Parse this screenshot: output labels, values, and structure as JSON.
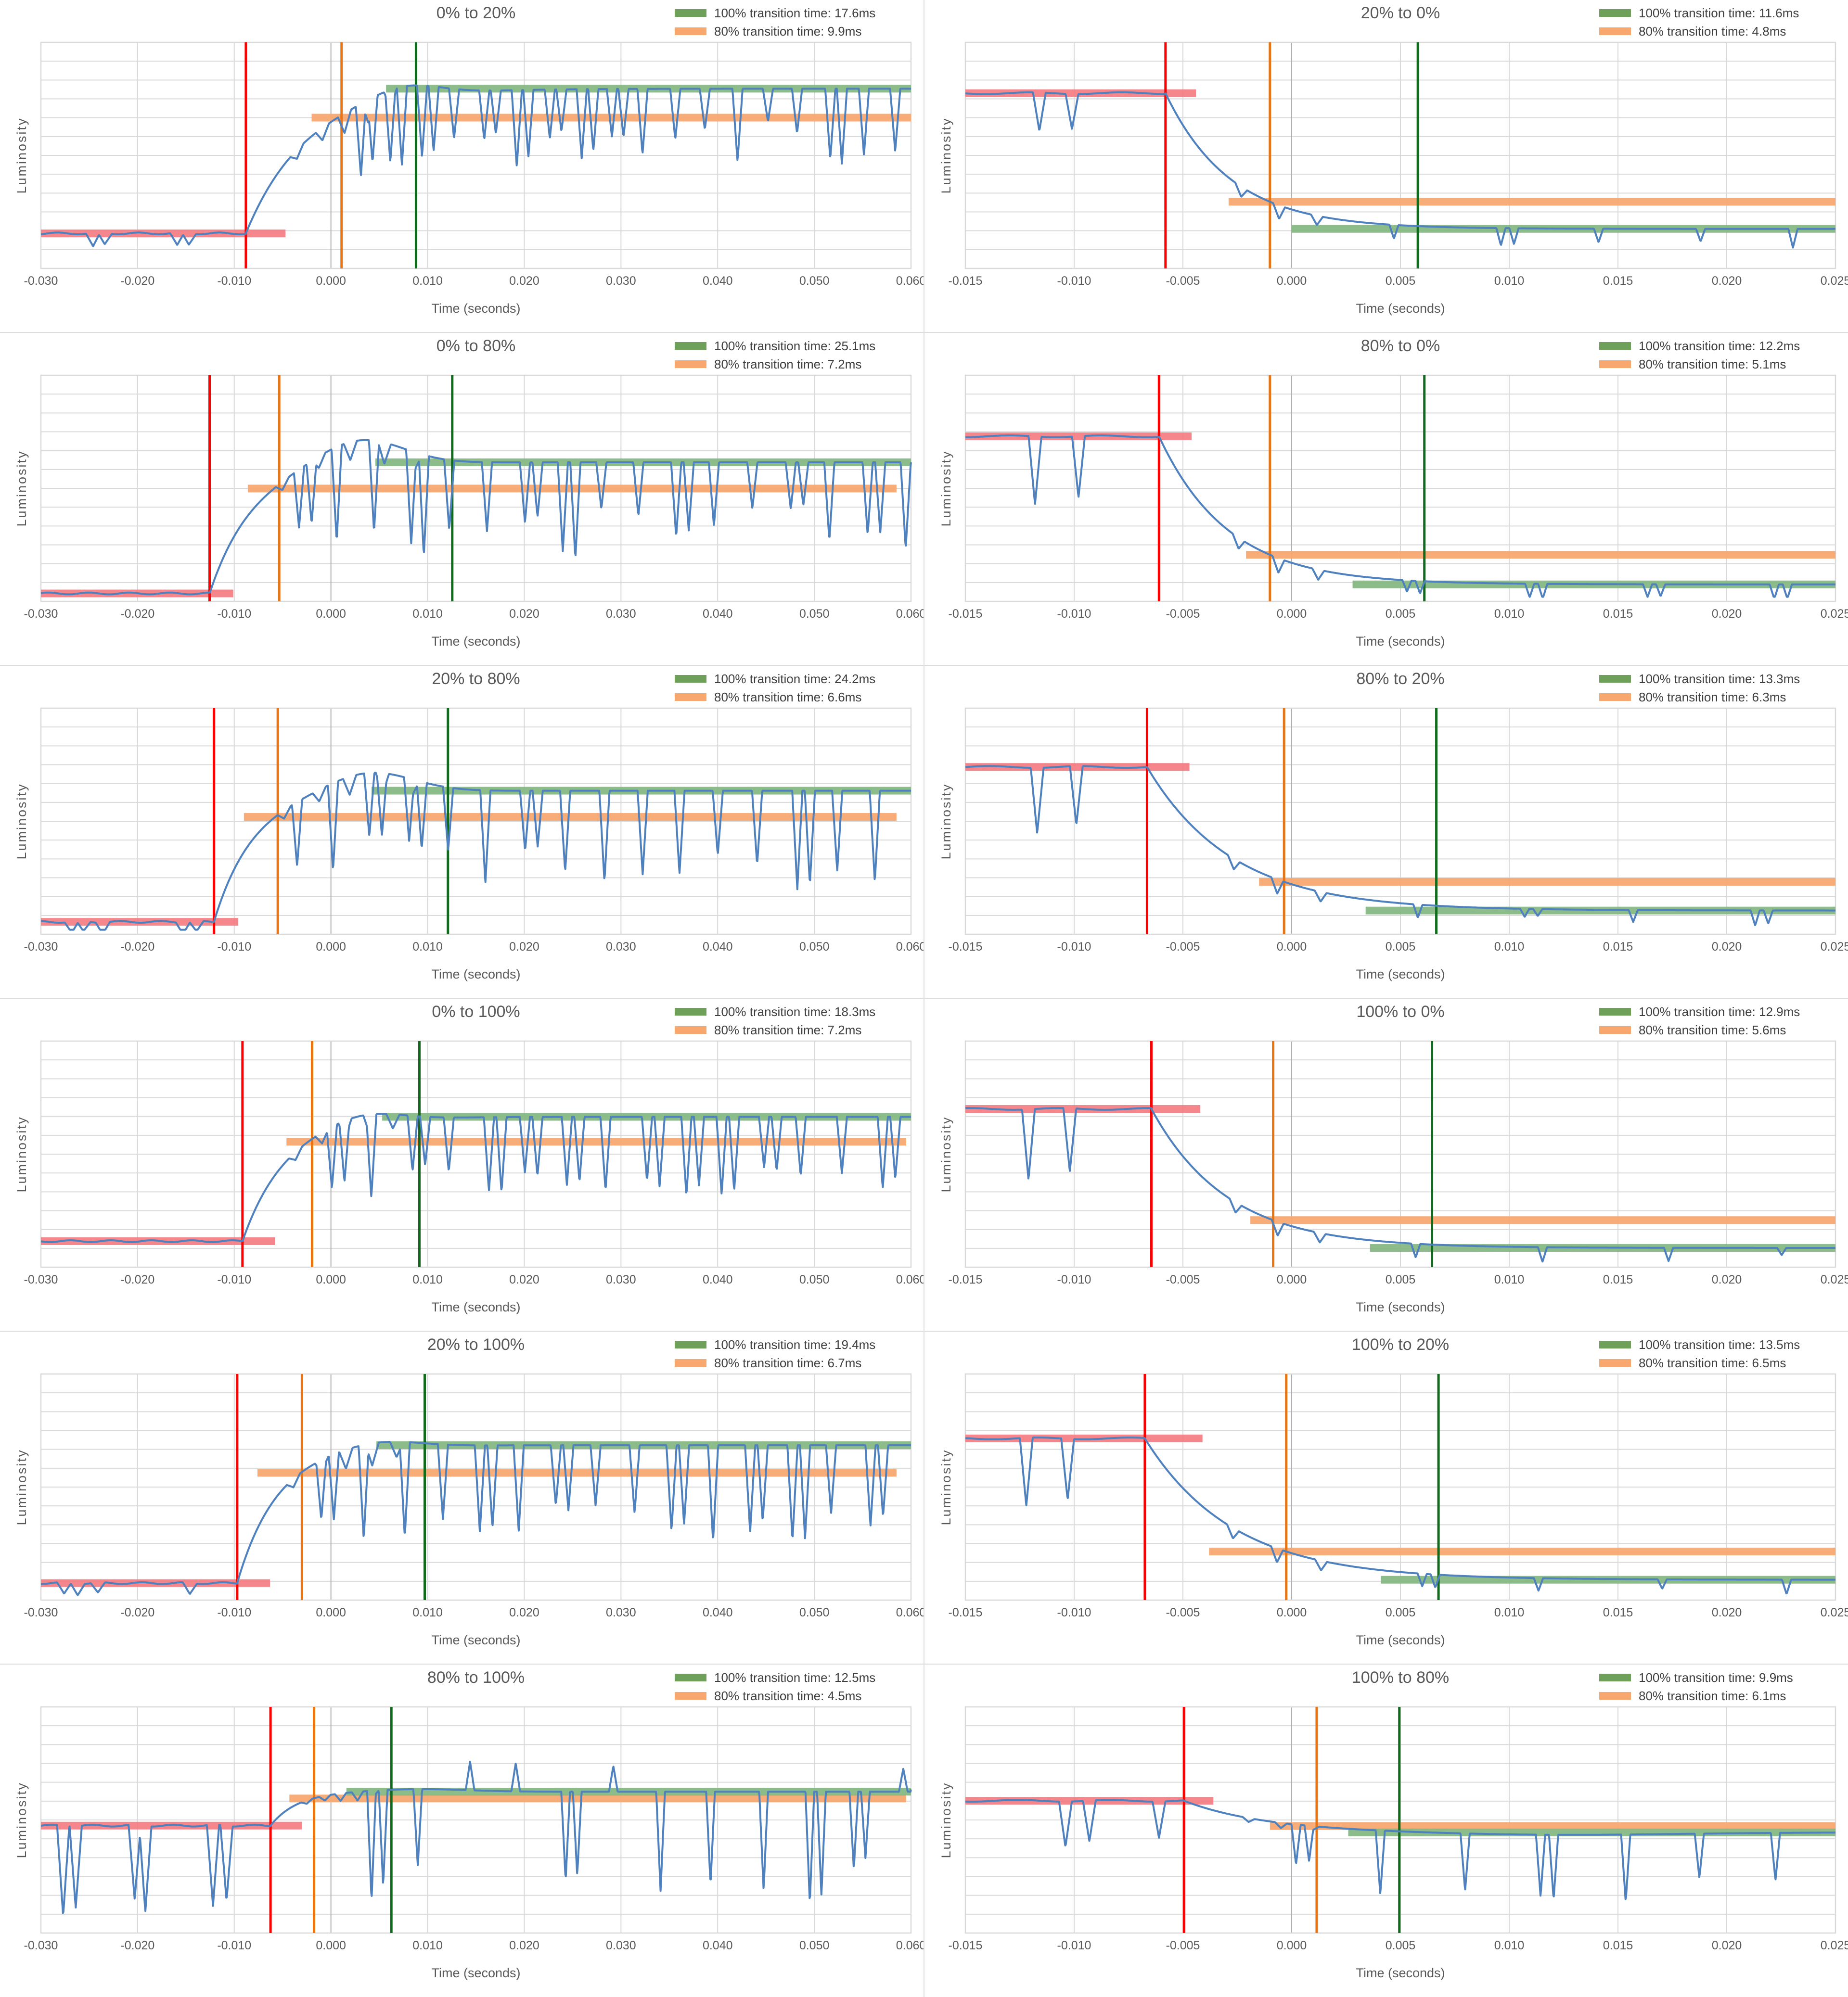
{
  "page": {
    "background": "#ffffff"
  },
  "axis": {
    "x_label": "Time (seconds)",
    "y_label": "Luminosity"
  },
  "colors": {
    "blue_line": "#4E81BD",
    "red_line": "#FE0000",
    "orange_line": "#E97414",
    "green_line": "#116B1C",
    "red_bar": "#F4797E",
    "green_bar": "#85B883",
    "orange_bar": "#F8A870",
    "gridline": "#D9D9D9",
    "zero_line": "#B0B0B0",
    "plot_border": "#D9D9D9",
    "title_text": "#595959",
    "tick_text": "#595959",
    "legend_text": "#3F3F3F",
    "legend_green_swatch": "#6FA05A",
    "legend_orange_swatch": "#F8A76F"
  },
  "chart_data": [
    {
      "type": "line",
      "title": "0% to 20%",
      "t100_ms": 17.6,
      "t80_ms": 9.9,
      "legend_100": "100% transition time: 17.6ms",
      "legend_80": "80% transition time: 9.9ms",
      "x_min": -0.03,
      "x_max": 0.06,
      "x_ticks": [
        "-0.030",
        "-0.020",
        "-0.010",
        "0.000",
        "0.010",
        "0.020",
        "0.030",
        "0.040",
        "0.050",
        "0.060"
      ],
      "red_line_t": -0.0088,
      "orange_line_t": 0.0011,
      "green_line_t": 0.0088,
      "source_level": 0.155,
      "target_level": 0.795,
      "level80": 0.667,
      "overshoot": 0.055,
      "peak_t": 0.0075,
      "peak_w": 0.005,
      "red_bar": [
        -0.03,
        -0.0047
      ],
      "green_bar": [
        0.0057,
        0.06
      ],
      "orange_bar": [
        -0.002,
        0.06
      ],
      "pre_spikes": [
        [
          -0.0246,
          0.06
        ],
        [
          -0.0234,
          0.05
        ],
        [
          -0.0159,
          0.055
        ],
        [
          -0.0147,
          0.05
        ]
      ],
      "spikes": {
        "start": 0.0031,
        "gap": [
          0.003,
          0.0035
        ],
        "depth": [
          0.14,
          0.34
        ],
        "double_p": 0.55,
        "double_off": 0.0012,
        "width": 0.0007
      },
      "seed": 3
    },
    {
      "type": "line",
      "title": "20% to 0%",
      "t100_ms": 11.6,
      "t80_ms": 4.8,
      "legend_100": "100% transition time: 11.6ms",
      "legend_80": "80% transition time: 4.8ms",
      "x_min": -0.015,
      "x_max": 0.025,
      "x_ticks": [
        "-0.015",
        "-0.010",
        "-0.005",
        "0.000",
        "0.005",
        "0.010",
        "0.015",
        "0.020",
        "0.025"
      ],
      "red_line_t": -0.0058,
      "orange_line_t": -0.001,
      "green_line_t": 0.0058,
      "source_level": 0.775,
      "target_level": 0.175,
      "level80": 0.295,
      "overshoot": 0,
      "peak_t": 0,
      "peak_w": 1,
      "red_bar": [
        -0.015,
        -0.0044
      ],
      "green_bar": [
        0.0,
        0.025
      ],
      "orange_bar": [
        -0.0029,
        0.025
      ],
      "pre_spikes": [
        [
          -0.0116,
          0.17
        ],
        [
          -0.0101,
          0.155
        ]
      ],
      "spikes": {
        "start": 0.0047,
        "gap": [
          0.0042,
          0.005
        ],
        "depth": [
          0.05,
          0.095
        ],
        "double_p": 0.5,
        "double_off": 0.0006,
        "width": 0.00028
      },
      "seed": 7
    },
    {
      "type": "line",
      "title": "0% to 80%",
      "t100_ms": 25.1,
      "t80_ms": 7.2,
      "legend_100": "100% transition time: 25.1ms",
      "legend_80": "80% transition time: 7.2ms",
      "x_min": -0.03,
      "x_max": 0.06,
      "x_ticks": [
        "-0.030",
        "-0.020",
        "-0.010",
        "0.000",
        "0.010",
        "0.020",
        "0.030",
        "0.040",
        "0.050",
        "0.060"
      ],
      "red_line_t": -0.01255,
      "orange_line_t": -0.00535,
      "green_line_t": 0.01255,
      "source_level": 0.035,
      "target_level": 0.615,
      "level80": 0.499,
      "overshoot": 0.115,
      "peak_t": 0.003,
      "peak_w": 0.0062,
      "red_bar": [
        -0.03,
        -0.0101
      ],
      "green_bar": [
        0.0046,
        0.06
      ],
      "orange_bar": [
        -0.0086,
        0.0585
      ],
      "pre_spikes": [],
      "spikes": {
        "start": -0.0033,
        "gap": [
          0.0038,
          0.004
        ],
        "depth": [
          0.2,
          0.42
        ],
        "double_p": 0.55,
        "double_off": 0.0013,
        "width": 0.0007
      },
      "seed": 5
    },
    {
      "type": "line",
      "title": "80% to 0%",
      "t100_ms": 12.2,
      "t80_ms": 5.1,
      "legend_100": "100% transition time: 12.2ms",
      "legend_80": "80% transition time: 5.1ms",
      "x_min": -0.015,
      "x_max": 0.025,
      "x_ticks": [
        "-0.015",
        "-0.010",
        "-0.005",
        "0.000",
        "0.005",
        "0.010",
        "0.015",
        "0.020",
        "0.025"
      ],
      "red_line_t": -0.0061,
      "orange_line_t": -0.001,
      "green_line_t": 0.0061,
      "source_level": 0.73,
      "target_level": 0.075,
      "level80": 0.206,
      "overshoot": 0,
      "peak_t": 0,
      "peak_w": 1,
      "red_bar": [
        -0.015,
        -0.0046
      ],
      "green_bar": [
        0.0028,
        0.025
      ],
      "orange_bar": [
        -0.0021,
        0.025
      ],
      "pre_spikes": [
        [
          -0.0118,
          0.3
        ],
        [
          -0.0098,
          0.27
        ]
      ],
      "spikes": {
        "start": 0.0053,
        "gap": [
          0.005,
          0.006
        ],
        "depth": [
          0.04,
          0.08
        ],
        "double_p": 0.45,
        "double_off": 0.0006,
        "width": 0.00028
      },
      "seed": 9
    },
    {
      "type": "line",
      "title": "20% to 80%",
      "t100_ms": 24.2,
      "t80_ms": 6.6,
      "legend_100": "100% transition time: 24.2ms",
      "legend_80": "80% transition time: 6.6ms",
      "x_min": -0.03,
      "x_max": 0.06,
      "x_ticks": [
        "-0.030",
        "-0.020",
        "-0.010",
        "0.000",
        "0.010",
        "0.020",
        "0.030",
        "0.040",
        "0.050",
        "0.060"
      ],
      "red_line_t": -0.0121,
      "orange_line_t": -0.0055,
      "green_line_t": 0.0121,
      "source_level": 0.055,
      "target_level": 0.635,
      "level80": 0.519,
      "overshoot": 0.09,
      "peak_t": 0.004,
      "peak_w": 0.0062,
      "red_bar": [
        -0.03,
        -0.0096
      ],
      "green_bar": [
        0.0042,
        0.06
      ],
      "orange_bar": [
        -0.009,
        0.0585
      ],
      "pre_spikes": [
        [
          -0.0268,
          0.05
        ],
        [
          -0.0256,
          0.045
        ],
        [
          -0.0236,
          0.05
        ],
        [
          -0.0153,
          0.05
        ],
        [
          -0.0139,
          0.045
        ]
      ],
      "spikes": {
        "start": -0.0035,
        "gap": [
          0.0037,
          0.0042
        ],
        "depth": [
          0.22,
          0.44
        ],
        "double_p": 0.5,
        "double_off": 0.0013,
        "width": 0.0007
      },
      "seed": 13
    },
    {
      "type": "line",
      "title": "80% to 20%",
      "t100_ms": 13.3,
      "t80_ms": 6.3,
      "legend_100": "100% transition time: 13.3ms",
      "legend_80": "80% transition time: 6.3ms",
      "x_min": -0.015,
      "x_max": 0.025,
      "x_ticks": [
        "-0.015",
        "-0.010",
        "-0.005",
        "0.000",
        "0.005",
        "0.010",
        "0.015",
        "0.020",
        "0.025"
      ],
      "red_line_t": -0.00665,
      "orange_line_t": -0.00035,
      "green_line_t": 0.00665,
      "source_level": 0.74,
      "target_level": 0.105,
      "level80": 0.232,
      "overshoot": 0,
      "peak_t": 0,
      "peak_w": 1,
      "red_bar": [
        -0.015,
        -0.0047
      ],
      "green_bar": [
        0.0034,
        0.025
      ],
      "orange_bar": [
        -0.0015,
        0.025
      ],
      "pre_spikes": [
        [
          -0.0117,
          0.29
        ],
        [
          -0.0099,
          0.26
        ]
      ],
      "spikes": {
        "start": 0.0058,
        "gap": [
          0.0048,
          0.0058
        ],
        "depth": [
          0.035,
          0.075
        ],
        "double_p": 0.45,
        "double_off": 0.0006,
        "width": 0.00028
      },
      "seed": 17
    },
    {
      "type": "line",
      "title": "0% to 100%",
      "t100_ms": 18.3,
      "t80_ms": 7.2,
      "legend_100": "100% transition time: 18.3ms",
      "legend_80": "80% transition time: 7.2ms",
      "x_min": -0.03,
      "x_max": 0.06,
      "x_ticks": [
        "-0.030",
        "-0.020",
        "-0.010",
        "0.000",
        "0.010",
        "0.020",
        "0.030",
        "0.040",
        "0.050",
        "0.060"
      ],
      "red_line_t": -0.00915,
      "orange_line_t": -0.00195,
      "green_line_t": 0.00915,
      "source_level": 0.115,
      "target_level": 0.665,
      "level80": 0.555,
      "overshoot": 0.04,
      "peak_t": 0.0035,
      "peak_w": 0.005,
      "red_bar": [
        -0.03,
        -0.0058
      ],
      "green_bar": [
        0.0053,
        0.06
      ],
      "orange_bar": [
        -0.0046,
        0.0595
      ],
      "pre_spikes": [],
      "spikes": {
        "start": 0.0001,
        "gap": [
          0.0036,
          0.0044
        ],
        "depth": [
          0.22,
          0.4
        ],
        "double_p": 0.55,
        "double_off": 0.0013,
        "width": 0.0007
      },
      "seed": 19
    },
    {
      "type": "line",
      "title": "100% to 0%",
      "t100_ms": 12.9,
      "t80_ms": 5.6,
      "legend_100": "100% transition time: 12.9ms",
      "legend_80": "80% transition time: 5.6ms",
      "x_min": -0.015,
      "x_max": 0.025,
      "x_ticks": [
        "-0.015",
        "-0.010",
        "-0.005",
        "0.000",
        "0.005",
        "0.010",
        "0.015",
        "0.020",
        "0.025"
      ],
      "red_line_t": -0.00645,
      "orange_line_t": -0.00085,
      "green_line_t": 0.00645,
      "source_level": 0.7,
      "target_level": 0.085,
      "level80": 0.208,
      "overshoot": 0,
      "peak_t": 0,
      "peak_w": 1,
      "red_bar": [
        -0.015,
        -0.0042
      ],
      "green_bar": [
        0.0036,
        0.025
      ],
      "orange_bar": [
        -0.0019,
        0.025
      ],
      "pre_spikes": [
        [
          -0.0121,
          0.31
        ],
        [
          -0.0102,
          0.28
        ]
      ],
      "spikes": {
        "start": 0.0057,
        "gap": [
          0.0052,
          0.006
        ],
        "depth": [
          0.03,
          0.07
        ],
        "double_p": 0.4,
        "double_off": 0.0006,
        "width": 0.00028
      },
      "seed": 23
    },
    {
      "type": "line",
      "title": "20% to 100%",
      "t100_ms": 19.4,
      "t80_ms": 6.7,
      "legend_100": "100% transition time: 19.4ms",
      "legend_80": "80% transition time: 6.7ms",
      "x_min": -0.03,
      "x_max": 0.06,
      "x_ticks": [
        "-0.030",
        "-0.020",
        "-0.010",
        "0.000",
        "0.010",
        "0.020",
        "0.030",
        "0.040",
        "0.050",
        "0.060"
      ],
      "red_line_t": -0.0097,
      "orange_line_t": -0.003,
      "green_line_t": 0.0097,
      "source_level": 0.075,
      "target_level": 0.685,
      "level80": 0.563,
      "overshoot": 0.03,
      "peak_t": 0.005,
      "peak_w": 0.0055,
      "red_bar": [
        -0.03,
        -0.0063
      ],
      "green_bar": [
        0.0047,
        0.06
      ],
      "orange_bar": [
        -0.0076,
        0.0585
      ],
      "pre_spikes": [
        [
          -0.0276,
          0.05
        ],
        [
          -0.0262,
          0.05
        ],
        [
          -0.0241,
          0.045
        ],
        [
          -0.0146,
          0.05
        ]
      ],
      "spikes": {
        "start": -0.001,
        "gap": [
          0.0038,
          0.0044
        ],
        "depth": [
          0.24,
          0.44
        ],
        "double_p": 0.5,
        "double_off": 0.0013,
        "width": 0.0007
      },
      "seed": 29
    },
    {
      "type": "line",
      "title": "100% to 20%",
      "t100_ms": 13.5,
      "t80_ms": 6.5,
      "legend_100": "100% transition time: 13.5ms",
      "legend_80": "80% transition time: 6.5ms",
      "x_min": -0.015,
      "x_max": 0.025,
      "x_ticks": [
        "-0.015",
        "-0.010",
        "-0.005",
        "0.000",
        "0.005",
        "0.010",
        "0.015",
        "0.020",
        "0.025"
      ],
      "red_line_t": -0.00675,
      "orange_line_t": -0.00025,
      "green_line_t": 0.00675,
      "source_level": 0.715,
      "target_level": 0.09,
      "level80": 0.215,
      "overshoot": 0,
      "peak_t": 0,
      "peak_w": 1,
      "red_bar": [
        -0.015,
        -0.0041
      ],
      "green_bar": [
        0.0041,
        0.025
      ],
      "orange_bar": [
        -0.0038,
        0.025
      ],
      "pre_spikes": [
        [
          -0.0122,
          0.3
        ],
        [
          -0.0103,
          0.27
        ]
      ],
      "spikes": {
        "start": 0.006,
        "gap": [
          0.005,
          0.0058
        ],
        "depth": [
          0.03,
          0.07
        ],
        "double_p": 0.4,
        "double_off": 0.0006,
        "width": 0.00028
      },
      "seed": 31
    },
    {
      "type": "line",
      "title": "80% to 100%",
      "t100_ms": 12.5,
      "t80_ms": 4.5,
      "legend_100": "100% transition time: 12.5ms",
      "legend_80": "80% transition time: 4.5ms",
      "x_min": -0.03,
      "x_max": 0.06,
      "x_ticks": [
        "-0.030",
        "-0.020",
        "-0.010",
        "0.000",
        "0.010",
        "0.020",
        "0.030",
        "0.040",
        "0.050",
        "0.060"
      ],
      "red_line_t": -0.00625,
      "orange_line_t": -0.00175,
      "green_line_t": 0.00625,
      "source_level": 0.475,
      "target_level": 0.625,
      "level80": 0.595,
      "overshoot": 0.012,
      "peak_t": 0.009,
      "peak_w": 0.007,
      "red_bar": [
        -0.03,
        -0.003
      ],
      "green_bar": [
        0.0016,
        0.06
      ],
      "orange_bar": [
        -0.0043,
        0.0595
      ],
      "pre_spikes": [
        [
          -0.0277,
          0.4
        ],
        [
          -0.0264,
          0.36
        ],
        [
          -0.0203,
          0.33
        ],
        [
          -0.0192,
          0.38
        ],
        [
          -0.0122,
          0.36
        ],
        [
          -0.0108,
          0.33
        ]
      ],
      "spikes": {
        "start": 0.0042,
        "gap": [
          0.0045,
          0.0055
        ],
        "depth": [
          0.34,
          0.52
        ],
        "double_p": 0.5,
        "double_off": 0.0012,
        "width": 0.0006,
        "up_p": 0.45,
        "up_depth": [
          0.09,
          0.13
        ]
      },
      "seed": 37
    },
    {
      "type": "line",
      "title": "100% to 80%",
      "t100_ms": 9.9,
      "t80_ms": 6.1,
      "legend_100": "100% transition time: 9.9ms",
      "legend_80": "80% transition time: 6.1ms",
      "x_min": -0.015,
      "x_max": 0.025,
      "x_ticks": [
        "-0.015",
        "-0.010",
        "-0.005",
        "0.000",
        "0.005",
        "0.010",
        "0.015",
        "0.020",
        "0.025"
      ],
      "red_line_t": -0.00495,
      "orange_line_t": 0.00115,
      "green_line_t": 0.00495,
      "source_level": 0.585,
      "target_level": 0.445,
      "level80": 0.473,
      "overshoot": -0.012,
      "peak_t": 0.012,
      "peak_w": 0.008,
      "red_bar": [
        -0.015,
        -0.0036
      ],
      "green_bar": [
        0.0026,
        0.025
      ],
      "orange_bar": [
        -0.001,
        0.025
      ],
      "pre_spikes": [
        [
          -0.0104,
          0.2
        ],
        [
          -0.0093,
          0.18
        ],
        [
          -0.0061,
          0.16
        ]
      ],
      "spikes": {
        "start": 0.0002,
        "gap": [
          0.0032,
          0.004
        ],
        "depth": [
          0.16,
          0.3
        ],
        "double_p": 0.55,
        "double_off": 0.0006,
        "width": 0.00028
      },
      "seed": 41
    }
  ]
}
